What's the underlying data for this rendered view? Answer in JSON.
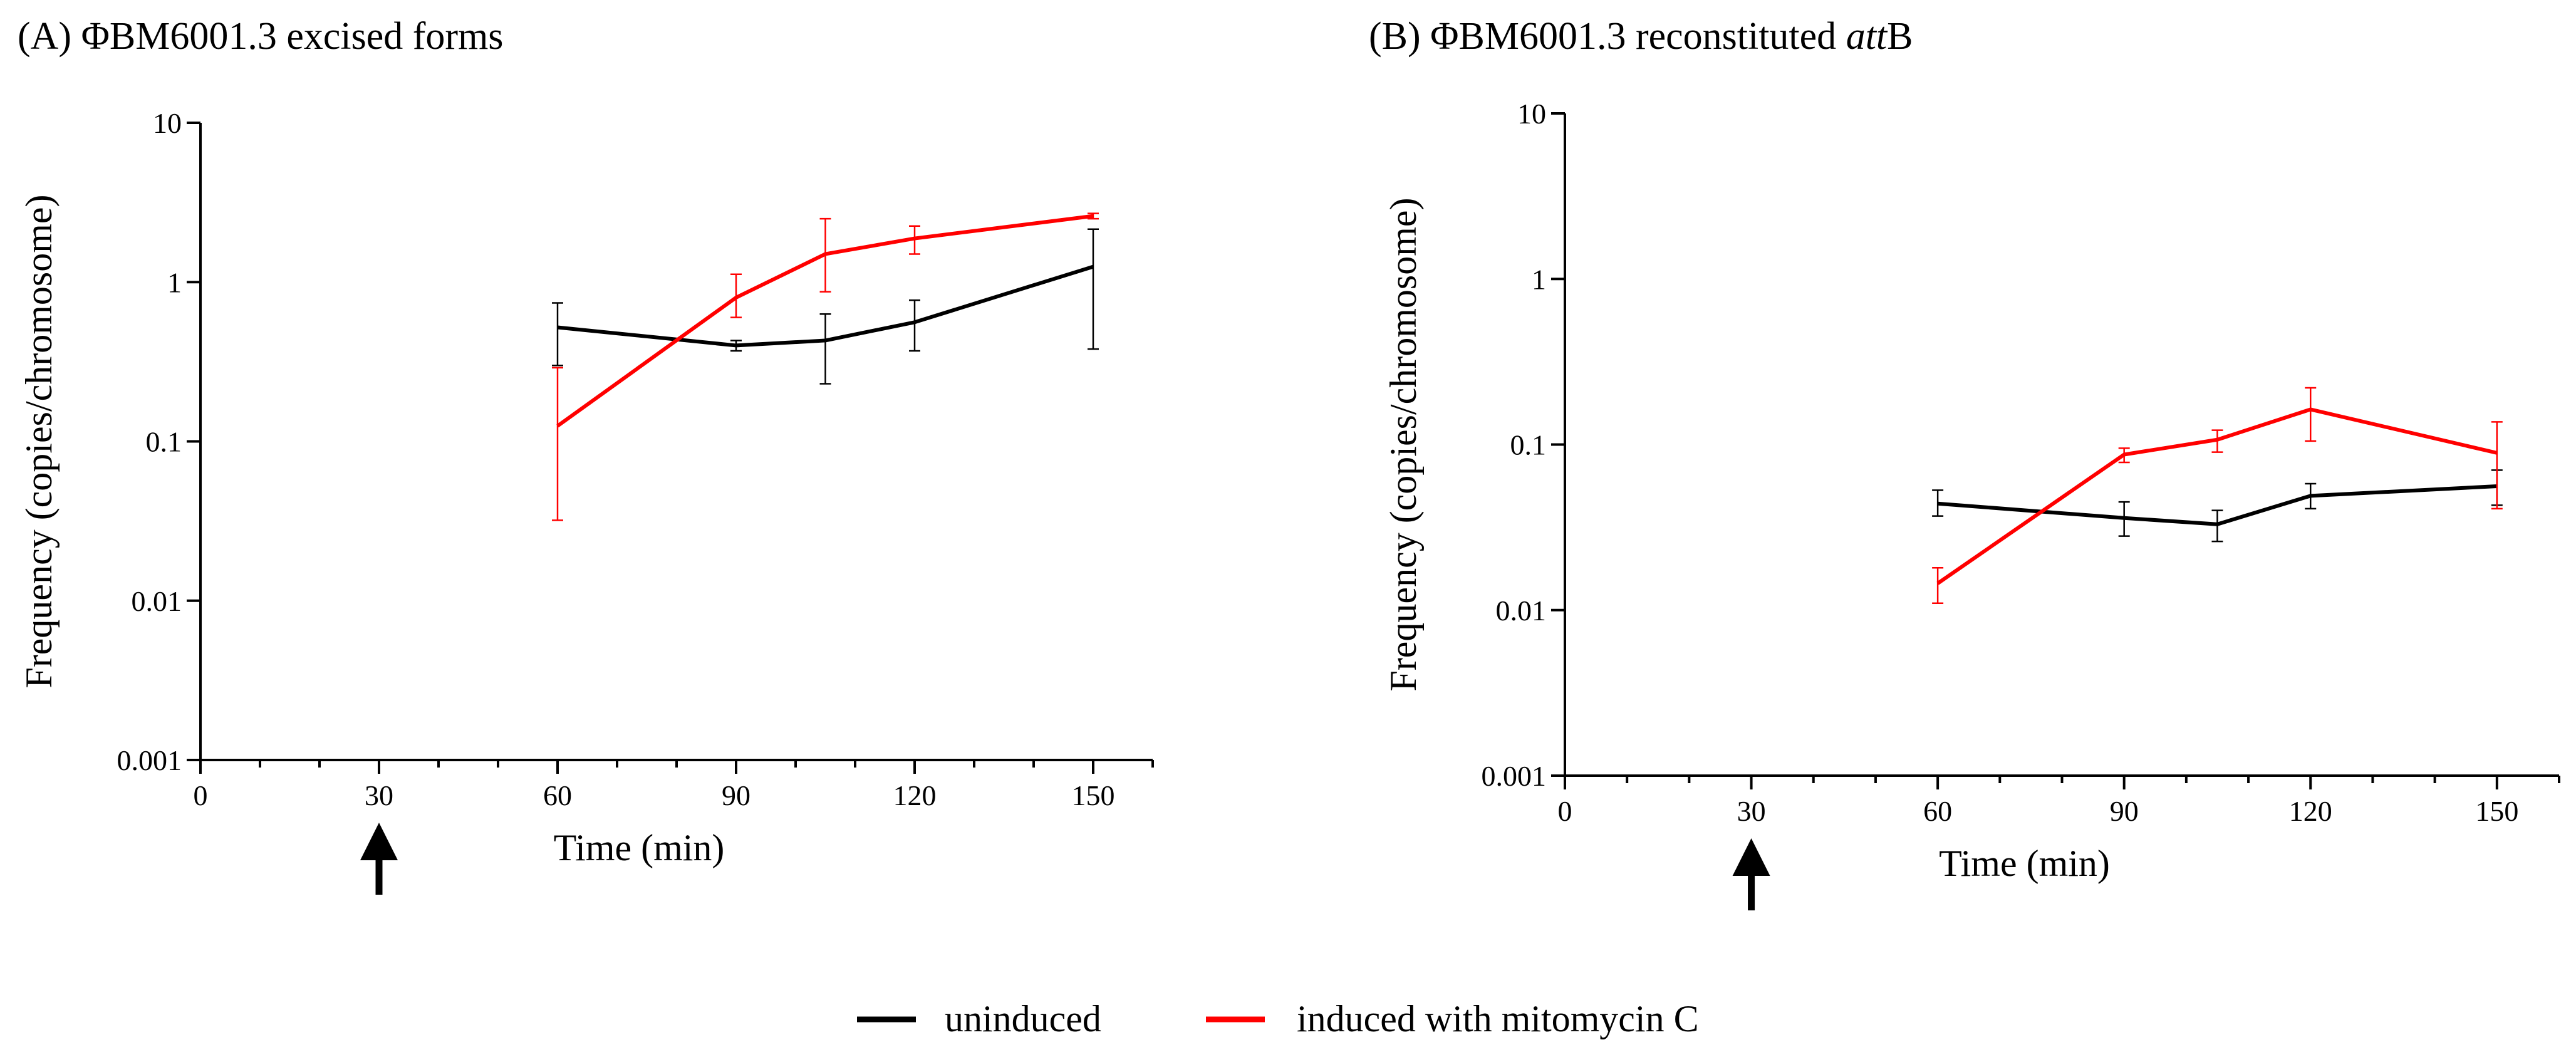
{
  "legend": {
    "items": [
      {
        "label": "uninduced",
        "color": "#000000"
      },
      {
        "label": "induced with mitomycin C",
        "color": "#ff0000"
      }
    ]
  },
  "colors": {
    "uninduced": "#000000",
    "induced": "#ff0000",
    "axis": "#000000"
  },
  "chart_data": [
    {
      "type": "line",
      "panel": "A",
      "title": "(A) ΦBM6001.3 excised forms",
      "title_parts": [
        {
          "text": "(A) ΦBM6001.3 excised forms",
          "italic": false
        }
      ],
      "xlabel": "Time (min)",
      "ylabel": "Frequency (copies/chromosome)",
      "yscale": "log",
      "xlim": [
        0,
        160
      ],
      "ylim": [
        0.001,
        10
      ],
      "xticks": [
        0,
        30,
        60,
        90,
        120,
        150
      ],
      "xtick_labels": [
        "0",
        "30",
        "60",
        "90",
        "120",
        "150"
      ],
      "yticks": [
        0.001,
        0.01,
        0.1,
        1,
        10
      ],
      "ytick_labels": [
        "0.001",
        "0.01",
        "0.1",
        "1",
        "10"
      ],
      "annotation": {
        "type": "arrow-up",
        "x": 30,
        "meaning": "induction time"
      },
      "series": [
        {
          "name": "uninduced",
          "color": "#000000",
          "x": [
            60,
            90,
            105,
            120,
            150
          ],
          "y": [
            0.52,
            0.4,
            0.43,
            0.56,
            1.25
          ],
          "err_low": [
            0.3,
            0.37,
            0.23,
            0.37,
            0.38
          ],
          "err_high": [
            0.74,
            0.43,
            0.63,
            0.77,
            2.15
          ]
        },
        {
          "name": "induced with mitomycin C",
          "color": "#ff0000",
          "x": [
            60,
            90,
            105,
            120,
            150
          ],
          "y": [
            0.125,
            0.8,
            1.5,
            1.88,
            2.6
          ],
          "err_low": [
            0.032,
            0.6,
            0.87,
            1.5,
            2.5
          ],
          "err_high": [
            0.29,
            1.12,
            2.5,
            2.25,
            2.7
          ]
        }
      ]
    },
    {
      "type": "line",
      "panel": "B",
      "title": "(B) ΦBM6001.3 reconstituted attB",
      "title_parts": [
        {
          "text": "(B) ΦBM6001.3 reconstituted ",
          "italic": false
        },
        {
          "text": "att",
          "italic": true
        },
        {
          "text": "B",
          "italic": false
        }
      ],
      "xlabel": "Time (min)",
      "ylabel": "Frequency (copies/chromosome)",
      "yscale": "log",
      "xlim": [
        0,
        160
      ],
      "ylim": [
        0.001,
        10
      ],
      "xticks": [
        0,
        30,
        60,
        90,
        120,
        150
      ],
      "xtick_labels": [
        "0",
        "30",
        "60",
        "90",
        "120",
        "150"
      ],
      "yticks": [
        0.001,
        0.01,
        0.1,
        1,
        10
      ],
      "ytick_labels": [
        "0.001",
        "0.01",
        "0.1",
        "1",
        "10"
      ],
      "annotation": {
        "type": "arrow-up",
        "x": 30,
        "meaning": "induction time"
      },
      "series": [
        {
          "name": "uninduced",
          "color": "#000000",
          "x": [
            60,
            90,
            105,
            120,
            150
          ],
          "y": [
            0.044,
            0.036,
            0.033,
            0.049,
            0.056
          ],
          "err_low": [
            0.037,
            0.028,
            0.026,
            0.041,
            0.043
          ],
          "err_high": [
            0.053,
            0.045,
            0.04,
            0.058,
            0.07
          ]
        },
        {
          "name": "induced with mitomycin C",
          "color": "#ff0000",
          "x": [
            60,
            90,
            105,
            120,
            150
          ],
          "y": [
            0.0145,
            0.087,
            0.107,
            0.163,
            0.089
          ],
          "err_low": [
            0.011,
            0.078,
            0.09,
            0.105,
            0.041
          ],
          "err_high": [
            0.018,
            0.095,
            0.122,
            0.22,
            0.137
          ]
        }
      ]
    }
  ]
}
